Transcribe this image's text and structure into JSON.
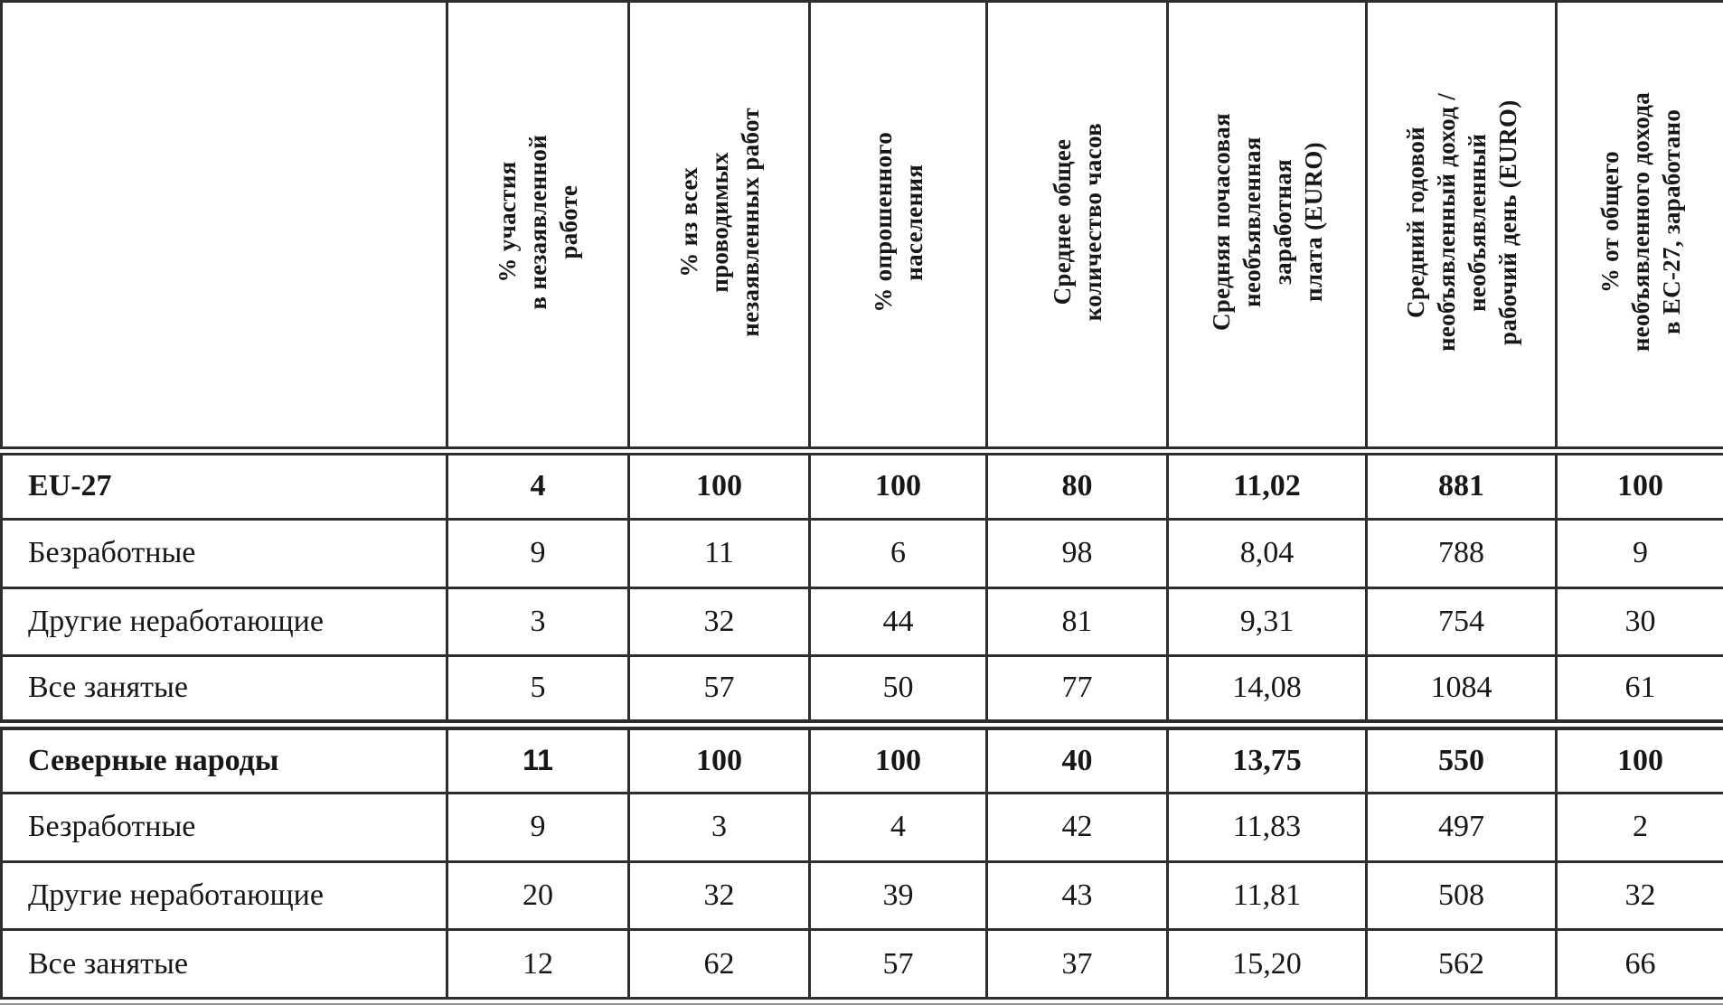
{
  "colors": {
    "text": "#171717",
    "grid": "#2e2e2e",
    "background": "#ffffff",
    "bottom_rule": "#8f8f8f"
  },
  "table": {
    "corner_label": "",
    "column_headers": [
      "% участия\nв незаявленной\nработе",
      "% из всех\nпроводимых\nнезаявленных работ",
      "% опрошенного\nнаселения",
      "Среднее общее\nколичество часов",
      "Средняя почасовая\nнеобъявленная\nзаработная\nплата (EURO)",
      "Средний годовой\nнеобъявленный доход /\nнеобъявленный\nрабочий день (EURO)",
      "% от общего\nнеобъявленного дохода\nв ЕС-27, заработано"
    ],
    "rows": [
      {
        "label": "EU-27",
        "values": [
          "4",
          "100",
          "100",
          "80",
          "11,02",
          "881",
          "100"
        ]
      },
      {
        "label": "Безработные",
        "values": [
          "9",
          "11",
          "6",
          "98",
          "8,04",
          "788",
          "9"
        ]
      },
      {
        "label": "Другие неработающие",
        "values": [
          "3",
          "32",
          "44",
          "81",
          "9,31",
          "754",
          "30"
        ]
      },
      {
        "label": "Все занятые",
        "values": [
          "5",
          "57",
          "50",
          "77",
          "14,08",
          "1084",
          "61"
        ]
      },
      {
        "label": "Северные народы",
        "values": [
          "11",
          "100",
          "100",
          "40",
          "13,75",
          "550",
          "100"
        ]
      },
      {
        "label": "Безработные",
        "values": [
          "9",
          "3",
          "4",
          "42",
          "11,83",
          "497",
          "2"
        ]
      },
      {
        "label": "Другие неработающие",
        "values": [
          "20",
          "32",
          "39",
          "43",
          "11,81",
          "508",
          "32"
        ]
      },
      {
        "label": "Все занятые",
        "values": [
          "12",
          "62",
          "57",
          "37",
          "15,20",
          "562",
          "66"
        ]
      }
    ]
  }
}
